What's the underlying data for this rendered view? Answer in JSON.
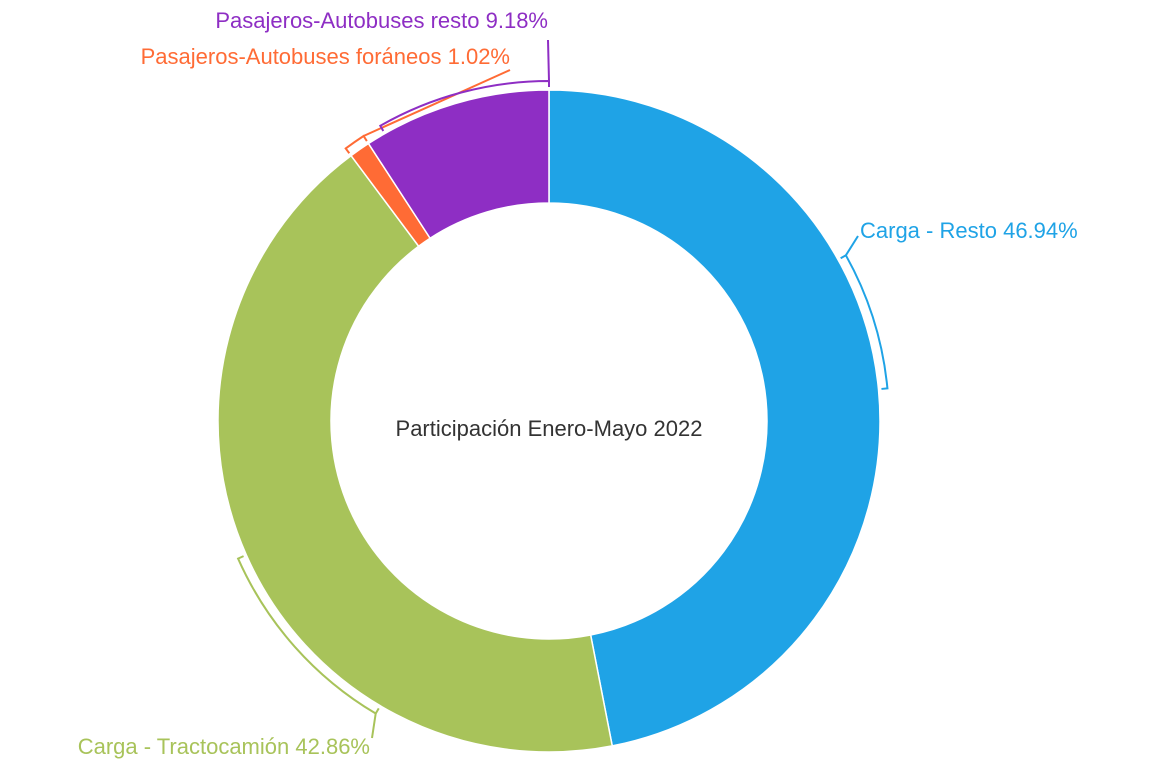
{
  "chart_data": {
    "type": "donut",
    "center_label": "Participación Enero-Mayo 2022",
    "categories": [
      "Carga - Resto",
      "Carga - Tractocamión",
      "Pasajeros-Autobuses foráneos",
      "Pasajeros-Autobuses resto"
    ],
    "values": [
      46.94,
      42.86,
      1.02,
      9.18
    ],
    "value_labels": [
      "46.94%",
      "42.86%",
      "1.02%",
      "9.18%"
    ],
    "colors": [
      "#1fa3e6",
      "#a8c35a",
      "#ff6b35",
      "#8e2ec4"
    ]
  }
}
